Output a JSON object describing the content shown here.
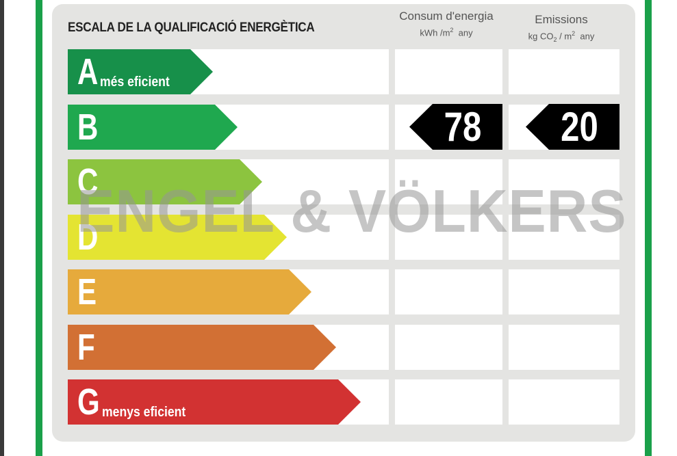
{
  "title": "ESCALA DE LA QUALIFICACIÓ ENERGÈTICA",
  "columns": {
    "energy": {
      "label": "Consum d'energia",
      "unit_a": "kWh /m",
      "unit_sup": "2",
      "unit_b": "any"
    },
    "emissions": {
      "label": "Emissions",
      "unit_a": "kg CO",
      "unit_sub": "2",
      "unit_b": "/ m",
      "unit_sup": "2",
      "unit_c": "any"
    }
  },
  "ratings": [
    {
      "letter": "A",
      "sub": "més eficient",
      "color": "#17904a"
    },
    {
      "letter": "B",
      "sub": "",
      "color": "#1fa84f"
    },
    {
      "letter": "C",
      "sub": "",
      "color": "#8cc43f"
    },
    {
      "letter": "D",
      "sub": "",
      "color": "#e4e432"
    },
    {
      "letter": "E",
      "sub": "",
      "color": "#e6aa3c"
    },
    {
      "letter": "F",
      "sub": "",
      "color": "#d27034"
    },
    {
      "letter": "G",
      "sub": "menys eficient",
      "color": "#d23232"
    }
  ],
  "current_rating": "B",
  "energy_value": "78",
  "emissions_value": "20",
  "watermark": "ENGEL & VÖLKERS",
  "colors": {
    "frame": "#1aa04a",
    "panel": "#e4e4e2",
    "tag": "#000000"
  }
}
